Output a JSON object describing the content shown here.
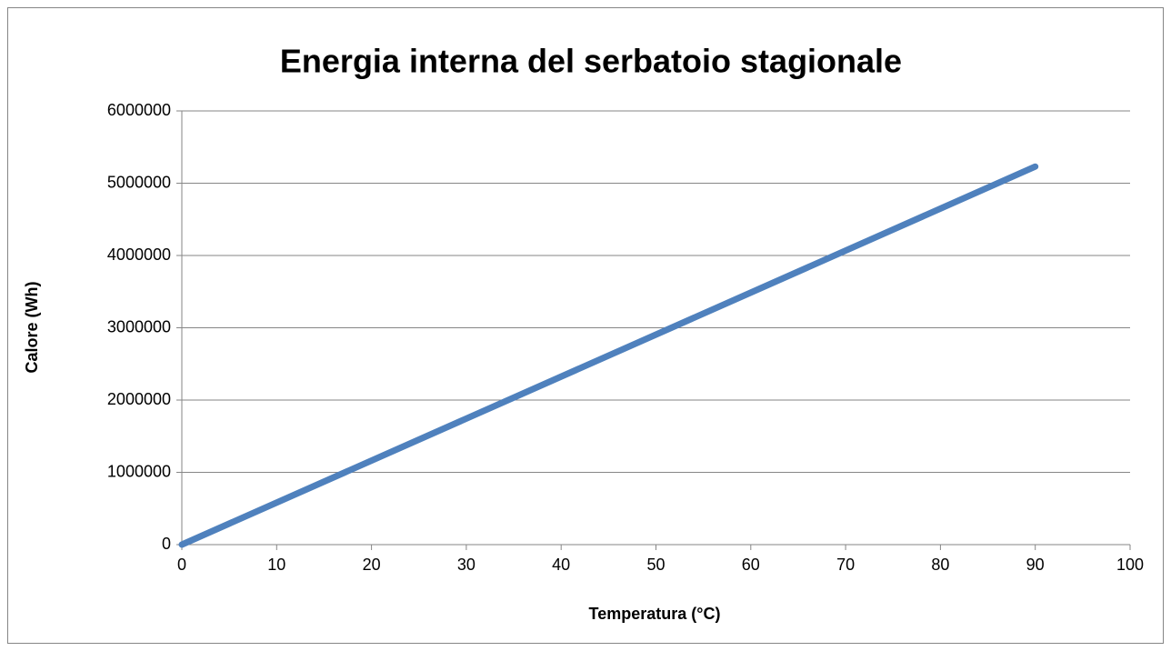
{
  "chart_data": {
    "type": "line",
    "title": "Energia interna del serbatoio stagionale",
    "x_label": "Temperatura (°C)",
    "y_label": "Calore (Wh)",
    "x": [
      0,
      90
    ],
    "values": [
      0,
      5230000
    ],
    "color": "#4f81bd",
    "xlim": [
      0,
      100
    ],
    "xticks": [
      0,
      10,
      20,
      30,
      40,
      50,
      60,
      70,
      80,
      90,
      100
    ],
    "ylim": [
      0,
      6000000
    ],
    "yticks": [
      0,
      1000000,
      2000000,
      3000000,
      4000000,
      5000000,
      6000000
    ],
    "grid": true
  }
}
